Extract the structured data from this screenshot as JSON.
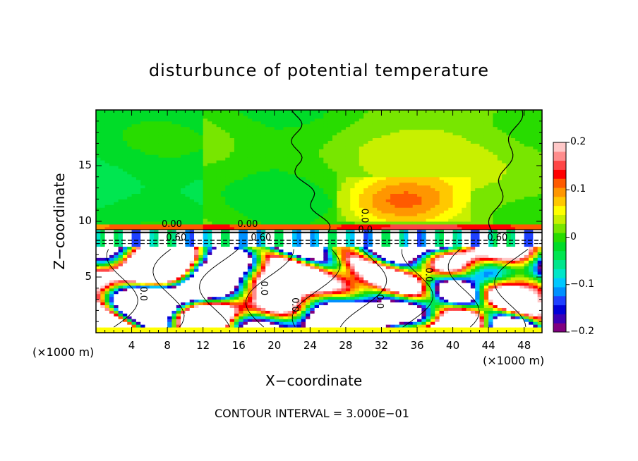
{
  "chart_data": {
    "type": "heatmap",
    "title": "disturbunce of potential temperature",
    "xlabel": "X−coordinate",
    "ylabel": "Z−coordinate",
    "x_unit_left": "(×1000 m)",
    "x_unit_right": "(×1000 m)",
    "footer": "CONTOUR INTERVAL = 3.000E−01",
    "xlim": [
      0,
      50
    ],
    "ylim": [
      0,
      20
    ],
    "x_ticks": [
      4,
      8,
      12,
      16,
      20,
      24,
      28,
      32,
      36,
      40,
      44,
      48
    ],
    "y_ticks": [
      5,
      10,
      15
    ],
    "colorbar": {
      "range": [
        -0.2,
        0.2
      ],
      "tick_values": [
        0.2,
        0.1,
        0,
        -0.1,
        -0.2
      ],
      "tick_labels": [
        "0.2",
        "0.1",
        "0",
        "−0.1",
        "−0.2"
      ],
      "colors": [
        "#800080",
        "#3b00b5",
        "#0000d8",
        "#1e40ff",
        "#0090ff",
        "#00c8ff",
        "#00e6c8",
        "#00e68c",
        "#00e650",
        "#00dc28",
        "#28dc00",
        "#78e600",
        "#c8f000",
        "#ffff00",
        "#ffc800",
        "#ff9600",
        "#ff5a00",
        "#ff0000",
        "#ff4646",
        "#ff8c8c",
        "#ffc8c8"
      ]
    },
    "contour_labels": [
      "0.00",
      "0.00",
      "0.60",
      "0.60",
      "0.60",
      "0.0",
      "0.0",
      "0.0",
      "0.0",
      "0.0",
      "0.0",
      "0.0"
    ]
  }
}
